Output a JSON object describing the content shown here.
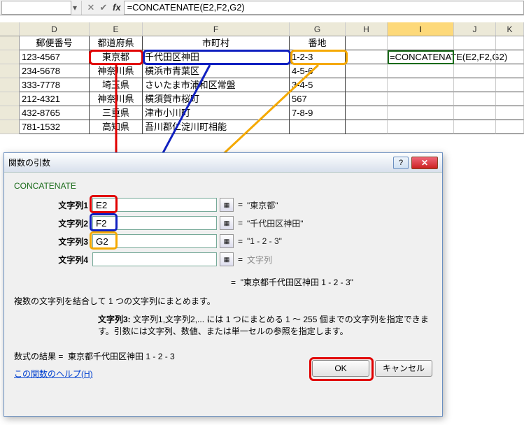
{
  "formula_bar": {
    "name": "",
    "formula": "=CONCATENATE(E2,F2,G2)"
  },
  "columns": [
    "D",
    "E",
    "F",
    "G",
    "H",
    "I",
    "J",
    "K"
  ],
  "headers": {
    "d": "郵便番号",
    "e": "都道府県",
    "f": "市町村",
    "g": "番地"
  },
  "rows": [
    {
      "d": "123-4567",
      "e": "東京都",
      "f": "千代田区神田",
      "g": "1-2-3",
      "i": "=CONCATENATE(E2,F2,G2)"
    },
    {
      "d": "234-5678",
      "e": "神奈川県",
      "f": "横浜市青葉区",
      "g": "4-5-6"
    },
    {
      "d": "333-7778",
      "e": "埼玉県",
      "f": "さいたま市浦和区常盤",
      "g": "3-4-5"
    },
    {
      "d": "212-4321",
      "e": "神奈川県",
      "f": "横須賀市桜町",
      "g": "567"
    },
    {
      "d": "432-8765",
      "e": "三重県",
      "f": "津市小川町",
      "g": "7-8-9"
    },
    {
      "d": "781-1532",
      "e": "高知県",
      "f": "吾川郡仁淀川町相能",
      "g": ""
    }
  ],
  "dialog": {
    "title": "関数の引数",
    "func": "CONCATENATE",
    "args": [
      {
        "label": "文字列1",
        "value": "E2",
        "result": "\"東京都\"",
        "ring": "red"
      },
      {
        "label": "文字列2",
        "value": "F2",
        "result": "\"千代田区神田\"",
        "ring": "blue"
      },
      {
        "label": "文字列3",
        "value": "G2",
        "result": "\"1 - 2 - 3\"",
        "ring": "yel"
      },
      {
        "label": "文字列4",
        "value": "",
        "result": "文字列",
        "ring": ""
      }
    ],
    "preview_label": "=",
    "preview": "\"東京都千代田区神田 1 - 2 - 3\"",
    "desc1": "複数の文字列を結合して 1 つの文字列にまとめます。",
    "desc2_label": "文字列3:",
    "desc2": "文字列1,文字列2,... には 1 つにまとめる 1 ～ 255 個までの文字列を指定できます。引数には文字列、数値、または単一セルの参照を指定します。",
    "formula_result_label": "数式の結果 =",
    "formula_result": "東京都千代田区神田 1 - 2 - 3",
    "help": "この関数のヘルプ(H)",
    "ok": "OK",
    "cancel": "キャンセル"
  },
  "colors": {
    "red": "#e10000",
    "blue": "#1020c0",
    "yellow": "#f5a900"
  }
}
